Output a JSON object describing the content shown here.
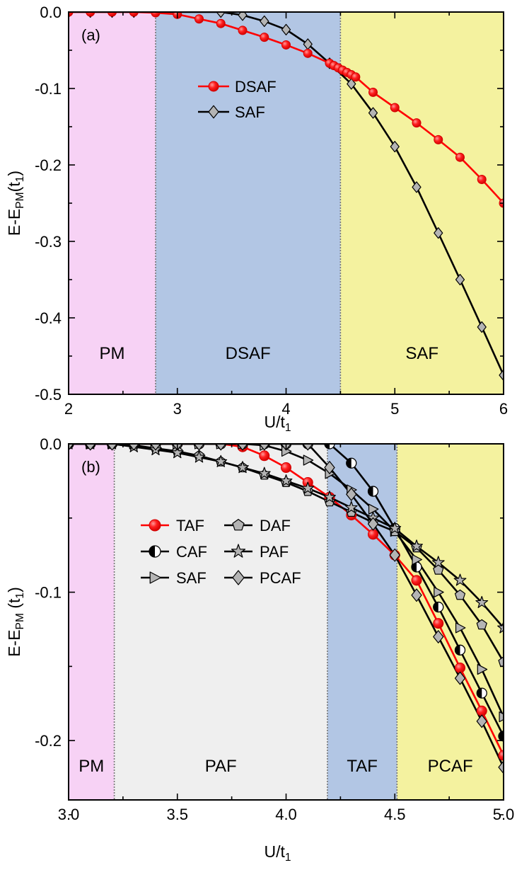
{
  "chart_data": [
    {
      "panel": "(a)",
      "type": "line",
      "xlabel": "U/t",
      "xlabel_sub": "1",
      "ylabel": "E-E",
      "ylabel_sub": "PM",
      "ylabel_tail": "(t",
      "ylabel_tail_sub": "1",
      "ylabel_close": ")",
      "xlim": [
        2,
        6
      ],
      "ylim": [
        -0.5,
        0.0
      ],
      "xticks": [
        2,
        3,
        4,
        5,
        6
      ],
      "xtick_labels": [
        "2",
        "3",
        "4",
        "5",
        "6"
      ],
      "yticks": [
        0.0,
        -0.1,
        -0.2,
        -0.3,
        -0.4,
        -0.5
      ],
      "ytick_labels": [
        "0.0",
        "-0.1",
        "-0.2",
        "-0.3",
        "-0.4",
        "-0.5"
      ],
      "regions": [
        {
          "label": "PM",
          "from": 2.0,
          "to": 2.8,
          "color": "#f7d2f5"
        },
        {
          "label": "DSAF",
          "from": 2.8,
          "to": 4.5,
          "color": "#b2c6e4"
        },
        {
          "label": "SAF",
          "from": 4.5,
          "to": 6.0,
          "color": "#f4f29f"
        }
      ],
      "legend_position": "center-left",
      "series": [
        {
          "name": "DSAF",
          "color": "#ff0000",
          "marker": "circle",
          "x": [
            2.0,
            2.2,
            2.4,
            2.6,
            2.8,
            3.0,
            3.2,
            3.4,
            3.6,
            3.8,
            4.0,
            4.2,
            4.4,
            4.44,
            4.48,
            4.52,
            4.56,
            4.6,
            4.64,
            4.8,
            5.0,
            5.2,
            5.4,
            5.6,
            5.8,
            6.0
          ],
          "y": [
            0.0,
            0.0,
            0.0,
            0.0,
            -0.001,
            -0.003,
            -0.009,
            -0.015,
            -0.024,
            -0.033,
            -0.043,
            -0.054,
            -0.067,
            -0.07,
            -0.073,
            -0.076,
            -0.079,
            -0.082,
            -0.085,
            -0.105,
            -0.125,
            -0.145,
            -0.167,
            -0.19,
            -0.219,
            -0.25
          ]
        },
        {
          "name": "SAF",
          "color": "#000000",
          "marker": "diamond",
          "fill": "#b4b4b4",
          "x": [
            2.0,
            2.2,
            2.4,
            2.6,
            3.4,
            3.6,
            3.8,
            4.0,
            4.2,
            4.4,
            4.6,
            4.8,
            5.0,
            5.2,
            5.4,
            5.6,
            5.8,
            6.0
          ],
          "y": [
            0.0,
            0.0,
            0.0,
            0.0,
            0.0,
            -0.004,
            -0.012,
            -0.023,
            -0.042,
            -0.067,
            -0.094,
            -0.132,
            -0.176,
            -0.229,
            -0.289,
            -0.35,
            -0.412,
            -0.475
          ]
        }
      ]
    },
    {
      "panel": "(b)",
      "type": "line",
      "xlabel": "U/t",
      "xlabel_sub": "1",
      "ylabel": "E-E",
      "ylabel_sub": "PM",
      "ylabel_tail": " (t",
      "ylabel_tail_sub": "1",
      "ylabel_close": ")",
      "xlim": [
        3.0,
        5.0
      ],
      "ylim": [
        -0.24,
        0.0
      ],
      "xticks": [
        3.0,
        3.5,
        4.0,
        4.5,
        5.0
      ],
      "xtick_labels": [
        "3.0",
        "3.5",
        "4.0",
        "4.5",
        "5.0"
      ],
      "yticks": [
        0.0,
        -0.1,
        -0.2
      ],
      "ytick_labels": [
        "0.0",
        "-0.1",
        "-0.2"
      ],
      "regions": [
        {
          "label": "PM",
          "from": 3.0,
          "to": 3.21,
          "color": "#f7d2f5"
        },
        {
          "label": "PAF",
          "from": 3.21,
          "to": 4.19,
          "color": "#efefef"
        },
        {
          "label": "TAF",
          "from": 4.19,
          "to": 4.51,
          "color": "#b2c6e4"
        },
        {
          "label": "PCAF",
          "from": 4.51,
          "to": 5.0,
          "color": "#f4f29f"
        }
      ],
      "legend_position": "center-left",
      "series": [
        {
          "name": "TAF",
          "color": "#ff0000",
          "marker": "circle",
          "x": [
            3.0,
            3.1,
            3.2,
            3.3,
            3.4,
            3.5,
            3.6,
            3.7,
            3.8,
            3.9,
            4.0,
            4.1,
            4.2,
            4.3,
            4.4,
            4.5,
            4.6,
            4.7,
            4.8,
            4.9,
            5.0
          ],
          "y": [
            0.0,
            0.0,
            0.0,
            0.0,
            0.0,
            0.0,
            0.0,
            0.0,
            -0.002,
            -0.008,
            -0.016,
            -0.026,
            -0.036,
            -0.048,
            -0.061,
            -0.075,
            -0.092,
            -0.121,
            -0.151,
            -0.18,
            -0.21
          ]
        },
        {
          "name": "CAF",
          "color": "#000000",
          "marker": "half-circle",
          "x": [
            3.0,
            3.1,
            3.2,
            3.3,
            3.4,
            3.5,
            3.6,
            3.7,
            3.8,
            3.9,
            4.0,
            4.1,
            4.2,
            4.3,
            4.4,
            4.5,
            4.6,
            4.7,
            4.8,
            4.9,
            5.0
          ],
          "y": [
            0.0,
            0.0,
            0.0,
            0.0,
            0.0,
            0.0,
            0.0,
            0.0,
            0.0,
            0.0,
            0.0,
            0.0,
            0.0,
            -0.013,
            -0.032,
            -0.057,
            -0.083,
            -0.11,
            -0.139,
            -0.168,
            -0.197
          ]
        },
        {
          "name": "SAF",
          "color": "#000000",
          "marker": "triangle-right",
          "x": [
            3.0,
            3.1,
            3.2,
            3.3,
            3.4,
            3.5,
            3.6,
            3.7,
            3.8,
            3.9,
            4.0,
            4.1,
            4.2,
            4.3,
            4.4,
            4.5,
            4.6,
            4.7,
            4.8,
            4.9,
            5.0
          ],
          "y": [
            0.0,
            0.0,
            0.0,
            0.0,
            0.0,
            0.0,
            0.0,
            0.0,
            0.0,
            -0.001,
            -0.005,
            -0.011,
            -0.02,
            -0.031,
            -0.044,
            -0.059,
            -0.078,
            -0.1,
            -0.124,
            -0.152,
            -0.184
          ]
        },
        {
          "name": "DAF",
          "color": "#000000",
          "marker": "pentagon",
          "x": [
            3.0,
            3.1,
            3.2,
            3.3,
            3.4,
            3.5,
            3.6,
            3.7,
            3.8,
            3.9,
            4.0,
            4.1,
            4.2,
            4.3,
            4.4,
            4.5,
            4.6,
            4.7,
            4.8,
            4.9,
            5.0
          ],
          "y": [
            0.0,
            0.0,
            0.0,
            -0.001,
            -0.003,
            -0.005,
            -0.008,
            -0.012,
            -0.016,
            -0.021,
            -0.026,
            -0.032,
            -0.039,
            -0.046,
            -0.053,
            -0.059,
            -0.07,
            -0.085,
            -0.102,
            -0.122,
            -0.147
          ]
        },
        {
          "name": "PAF",
          "color": "#000000",
          "marker": "star",
          "x": [
            3.0,
            3.1,
            3.2,
            3.3,
            3.4,
            3.5,
            3.6,
            3.7,
            3.8,
            3.9,
            4.0,
            4.1,
            4.2,
            4.3,
            4.4,
            4.5,
            4.6,
            4.7,
            4.8,
            4.9,
            5.0
          ],
          "y": [
            0.0,
            0.0,
            0.0,
            -0.002,
            -0.004,
            -0.006,
            -0.009,
            -0.012,
            -0.016,
            -0.02,
            -0.025,
            -0.03,
            -0.036,
            -0.043,
            -0.05,
            -0.057,
            -0.069,
            -0.08,
            -0.092,
            -0.107,
            -0.124
          ]
        },
        {
          "name": "PCAF",
          "color": "#000000",
          "marker": "diamond",
          "x": [
            3.0,
            3.1,
            3.2,
            3.3,
            3.4,
            3.5,
            3.6,
            3.7,
            3.8,
            3.9,
            4.0,
            4.1,
            4.2,
            4.3,
            4.4,
            4.5,
            4.6,
            4.7,
            4.8,
            4.9,
            5.0
          ],
          "y": [
            0.0,
            0.0,
            0.0,
            0.0,
            0.0,
            0.0,
            0.0,
            0.0,
            0.0,
            0.0,
            0.0,
            0.0,
            -0.016,
            -0.034,
            -0.054,
            -0.075,
            -0.102,
            -0.13,
            -0.158,
            -0.187,
            -0.218
          ]
        }
      ]
    }
  ]
}
